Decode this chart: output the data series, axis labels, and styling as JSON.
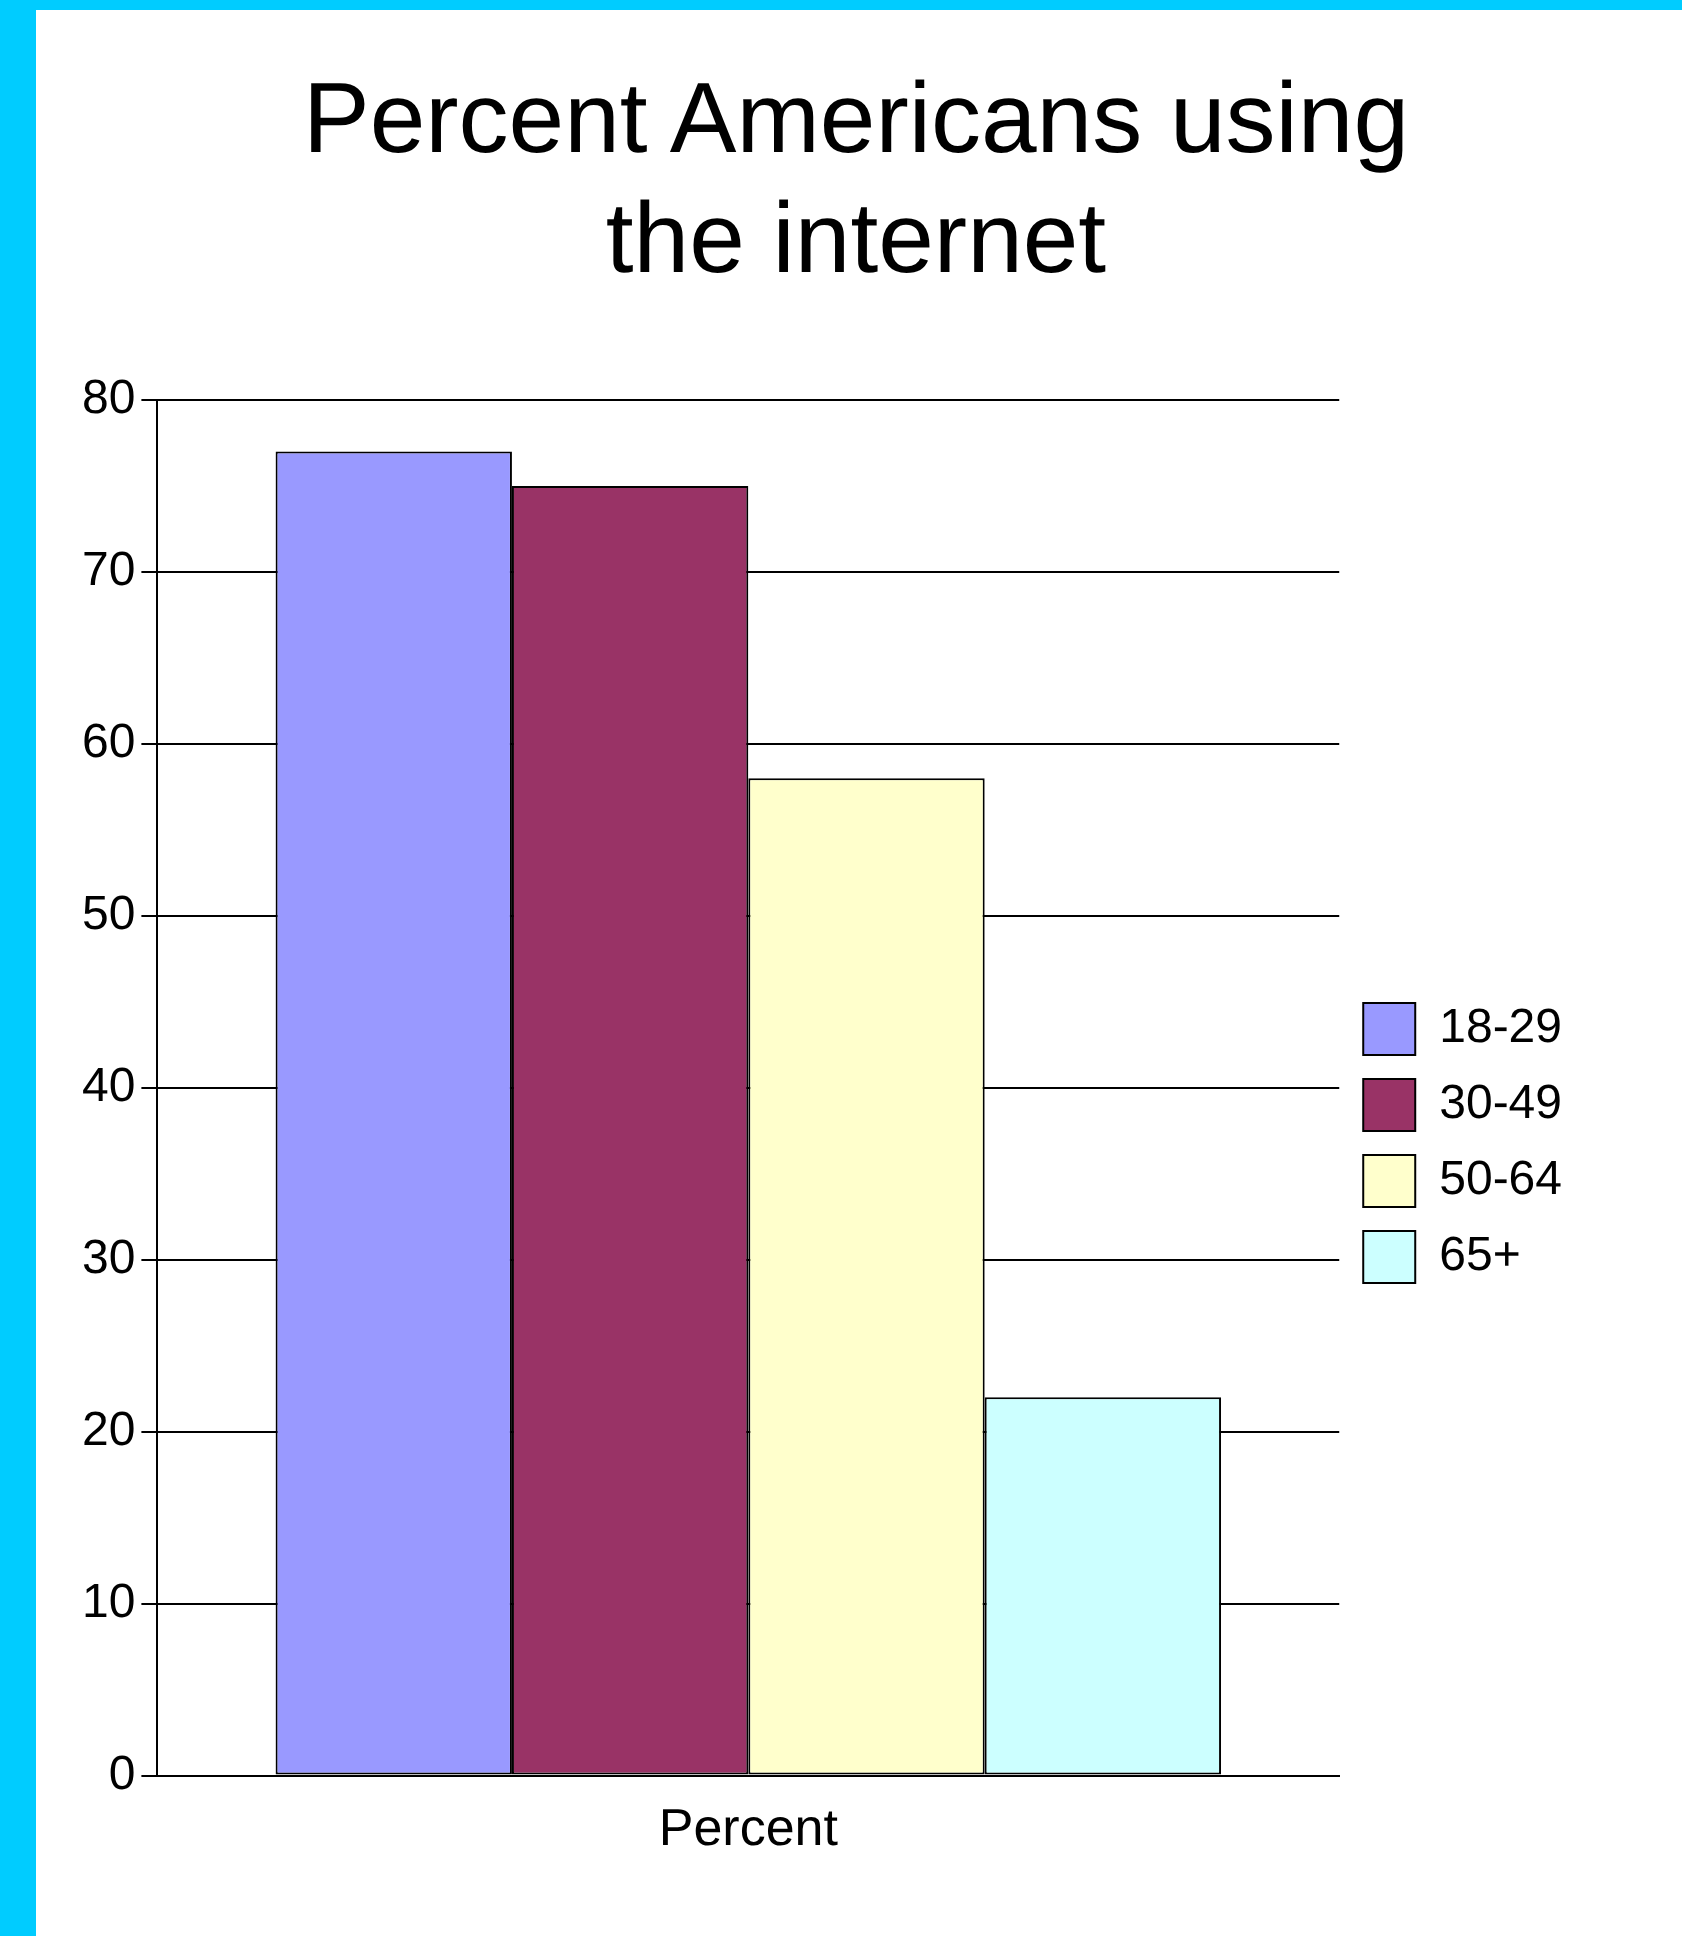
{
  "chart_data": {
    "type": "bar",
    "title": "Percent Americans using the internet",
    "categories": [
      "Percent"
    ],
    "series": [
      {
        "name": "18-29",
        "color": "#9999ff",
        "values": [
          77
        ]
      },
      {
        "name": "30-49",
        "color": "#993366",
        "values": [
          75
        ]
      },
      {
        "name": "50-64",
        "color": "#ffffcc",
        "values": [
          58
        ]
      },
      {
        "name": "65+",
        "color": "#ccffff",
        "values": [
          22
        ]
      }
    ],
    "ylim": [
      0,
      80
    ],
    "yticks": [
      0,
      10,
      20,
      30,
      40,
      50,
      60,
      70,
      80
    ],
    "grid": "y",
    "legend": "right"
  }
}
